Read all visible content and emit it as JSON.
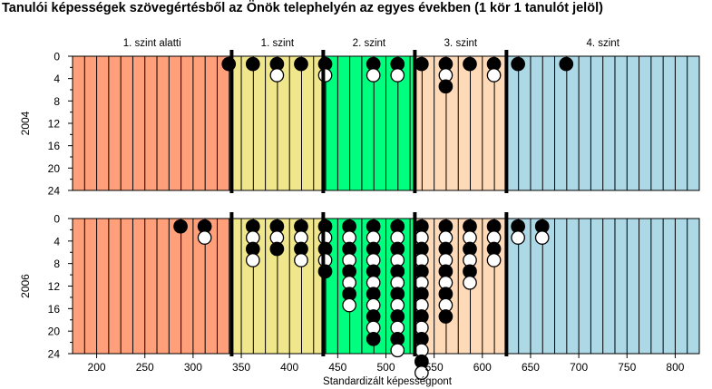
{
  "title": "Tanulói képességek szövegértésből az Önök telephelyén az egyes években (1 kör 1 tanulót jelöl)",
  "chart_data": {
    "type": "scatter",
    "xlabel": "Standardizált képességpont",
    "xlim": [
      175,
      825
    ],
    "x_ticks": [
      200,
      250,
      300,
      350,
      400,
      450,
      500,
      550,
      600,
      650,
      700,
      750,
      800
    ],
    "ylim": [
      0,
      24
    ],
    "y_ticks": [
      "0",
      "4",
      "8",
      "12",
      "16",
      "20",
      "24"
    ],
    "levels": [
      {
        "label": "1. szint alatti",
        "from": 175,
        "to": 340,
        "color": "#ffa07a"
      },
      {
        "label": "1. szint",
        "from": 340,
        "to": 435,
        "color": "#f0e68c"
      },
      {
        "label": "2. szint",
        "from": 435,
        "to": 530,
        "color": "#00ff7f"
      },
      {
        "label": "3. szint",
        "from": 530,
        "to": 625,
        "color": "#ffdab9"
      },
      {
        "label": "4. szint",
        "from": 625,
        "to": 825,
        "color": "#add8e6"
      }
    ],
    "level_boundaries": [
      340,
      435,
      530,
      625
    ],
    "panels": [
      {
        "year": "2004",
        "columns": [
          {
            "x": 337,
            "count": 1
          },
          {
            "x": 362,
            "count": 1
          },
          {
            "x": 387,
            "count": 2
          },
          {
            "x": 412,
            "count": 1
          },
          {
            "x": 437,
            "count": 2
          },
          {
            "x": 487,
            "count": 2
          },
          {
            "x": 512,
            "count": 2
          },
          {
            "x": 537,
            "count": 1
          },
          {
            "x": 562,
            "count": 3
          },
          {
            "x": 587,
            "count": 1
          },
          {
            "x": 612,
            "count": 2
          },
          {
            "x": 637,
            "count": 1
          },
          {
            "x": 687,
            "count": 1
          }
        ]
      },
      {
        "year": "2006",
        "columns": [
          {
            "x": 287,
            "count": 1
          },
          {
            "x": 312,
            "count": 2
          },
          {
            "x": 362,
            "count": 4
          },
          {
            "x": 387,
            "count": 3
          },
          {
            "x": 412,
            "count": 4
          },
          {
            "x": 437,
            "count": 5
          },
          {
            "x": 462,
            "count": 8
          },
          {
            "x": 487,
            "count": 11
          },
          {
            "x": 512,
            "count": 12
          },
          {
            "x": 537,
            "count": 14
          },
          {
            "x": 562,
            "count": 9
          },
          {
            "x": 587,
            "count": 6
          },
          {
            "x": 612,
            "count": 4
          },
          {
            "x": 637,
            "count": 2
          },
          {
            "x": 662,
            "count": 2
          }
        ]
      }
    ]
  }
}
